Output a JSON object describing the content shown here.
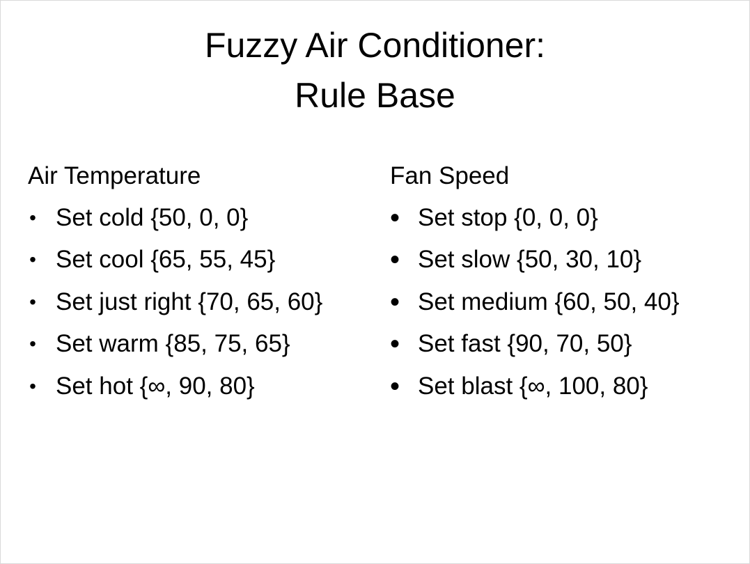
{
  "slide": {
    "title_line1": "Fuzzy Air Conditioner:",
    "title_line2": "Rule Base",
    "left_column": {
      "heading": "Air Temperature",
      "bullet": "•",
      "items": [
        "Set cold {50, 0, 0}",
        "Set cool {65, 55, 45}",
        "Set just right {70, 65, 60}",
        "Set warm {85, 75, 65}",
        "Set hot {∞, 90, 80}"
      ]
    },
    "right_column": {
      "heading": "Fan Speed",
      "bullet": "•",
      "items": [
        "Set stop {0, 0, 0}",
        "Set slow {50, 30, 10}",
        "Set medium {60, 50, 40}",
        "Set fast {90, 70, 50}",
        "Set blast {∞, 100, 80}"
      ]
    }
  }
}
